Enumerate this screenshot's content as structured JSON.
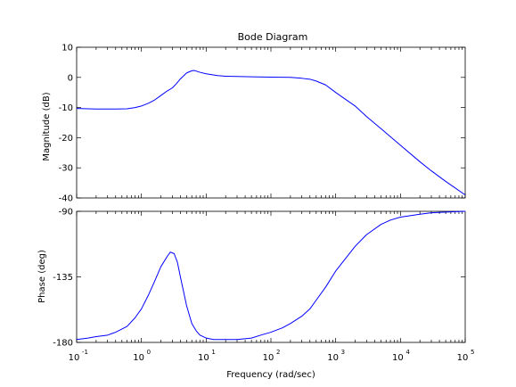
{
  "chart_data": [
    {
      "type": "line",
      "panel": "magnitude",
      "title": "Bode Diagram",
      "xlabel": "",
      "ylabel": "Magnitude (dB)",
      "xscale": "log",
      "xlim": [
        0.1,
        100000
      ],
      "ylim": [
        -40,
        10
      ],
      "yticks": [
        10,
        0,
        -10,
        -20,
        -30,
        -40
      ],
      "grid": false,
      "line_color": "#0000ff",
      "series": [
        {
          "x": [
            0.1,
            0.2,
            0.4,
            0.6,
            0.8,
            1,
            1.3,
            1.6,
            2,
            2.5,
            3,
            3.5,
            4,
            5,
            6,
            6.5,
            7,
            8,
            10,
            15,
            20,
            30,
            50,
            100,
            200,
            300,
            400,
            500,
            700,
            1000,
            2000,
            3000,
            5000,
            10000,
            20000,
            30000,
            50000,
            100000
          ],
          "y": [
            -10.3,
            -10.5,
            -10.5,
            -10.4,
            -10.0,
            -9.5,
            -8.5,
            -7.5,
            -6.0,
            -4.5,
            -3.5,
            -2.0,
            -0.5,
            1.5,
            2.2,
            2.3,
            2.1,
            1.7,
            1.2,
            0.6,
            0.4,
            0.3,
            0.2,
            0.1,
            0.0,
            -0.3,
            -0.6,
            -1.2,
            -2.5,
            -5.0,
            -9.5,
            -13.0,
            -17.0,
            -22.5,
            -28.0,
            -31.0,
            -34.5,
            -39.0
          ]
        }
      ]
    },
    {
      "type": "line",
      "panel": "phase",
      "title": "",
      "xlabel": "Frequency  (rad/sec)",
      "ylabel": "Phase (deg)",
      "xscale": "log",
      "xlim": [
        0.1,
        100000
      ],
      "ylim": [
        -180,
        -90
      ],
      "yticks": [
        -90,
        -135,
        -180
      ],
      "xticks": [
        {
          "base": "10",
          "exp": "-1"
        },
        {
          "base": "10",
          "exp": "0"
        },
        {
          "base": "10",
          "exp": "1"
        },
        {
          "base": "10",
          "exp": "2"
        },
        {
          "base": "10",
          "exp": "3"
        },
        {
          "base": "10",
          "exp": "4"
        },
        {
          "base": "10",
          "exp": "5"
        }
      ],
      "grid": false,
      "line_color": "#0000ff",
      "series": [
        {
          "x": [
            0.1,
            0.15,
            0.2,
            0.3,
            0.4,
            0.6,
            0.8,
            1,
            1.3,
            1.6,
            2,
            2.5,
            2.8,
            3.2,
            3.6,
            4,
            5,
            6,
            7,
            8,
            10,
            13,
            15,
            20,
            30,
            50,
            70,
            100,
            150,
            200,
            300,
            400,
            500,
            700,
            1000,
            1500,
            2000,
            3000,
            5000,
            7000,
            10000,
            20000,
            30000,
            50000,
            100000
          ],
          "y": [
            -178,
            -177,
            -176,
            -175,
            -173,
            -169,
            -163,
            -157,
            -147,
            -138,
            -128,
            -121,
            -118,
            -119,
            -125,
            -135,
            -155,
            -167,
            -172,
            -175,
            -177,
            -178,
            -178,
            -178,
            -178,
            -177,
            -175,
            -173,
            -170,
            -167,
            -162,
            -157,
            -151,
            -142,
            -131,
            -121,
            -114,
            -106,
            -99,
            -96,
            -94,
            -92,
            -91,
            -90.5,
            -90
          ]
        }
      ]
    }
  ]
}
